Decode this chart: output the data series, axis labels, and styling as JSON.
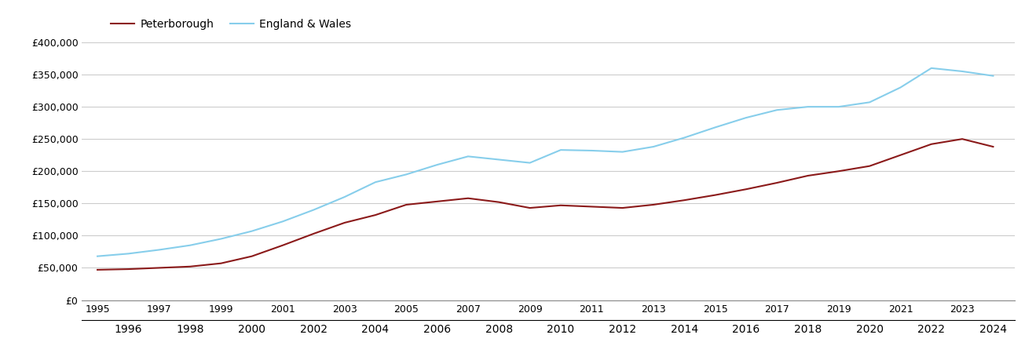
{
  "years": [
    1995,
    1996,
    1997,
    1998,
    1999,
    2000,
    2001,
    2002,
    2003,
    2004,
    2005,
    2006,
    2007,
    2008,
    2009,
    2010,
    2011,
    2012,
    2013,
    2014,
    2015,
    2016,
    2017,
    2018,
    2019,
    2020,
    2021,
    2022,
    2023,
    2024
  ],
  "peterborough": [
    47000,
    48000,
    50000,
    52000,
    57000,
    68000,
    85000,
    103000,
    120000,
    132000,
    148000,
    153000,
    158000,
    152000,
    143000,
    147000,
    145000,
    143000,
    148000,
    155000,
    163000,
    172000,
    182000,
    193000,
    200000,
    208000,
    225000,
    242000,
    250000,
    238000
  ],
  "england_wales": [
    68000,
    72000,
    78000,
    85000,
    95000,
    107000,
    122000,
    140000,
    160000,
    183000,
    195000,
    210000,
    223000,
    218000,
    213000,
    233000,
    232000,
    230000,
    238000,
    252000,
    268000,
    283000,
    295000,
    300000,
    300000,
    307000,
    330000,
    360000,
    355000,
    348000
  ],
  "peterborough_color": "#8B1A1A",
  "england_wales_color": "#87CEEB",
  "background_color": "#ffffff",
  "grid_color": "#cccccc",
  "ylim": [
    0,
    400000
  ],
  "yticks": [
    0,
    50000,
    100000,
    150000,
    200000,
    250000,
    300000,
    350000,
    400000
  ],
  "legend_peterborough": "Peterborough",
  "legend_england_wales": "England & Wales",
  "line_width": 1.5,
  "xlim": [
    1994.5,
    2024.7
  ]
}
